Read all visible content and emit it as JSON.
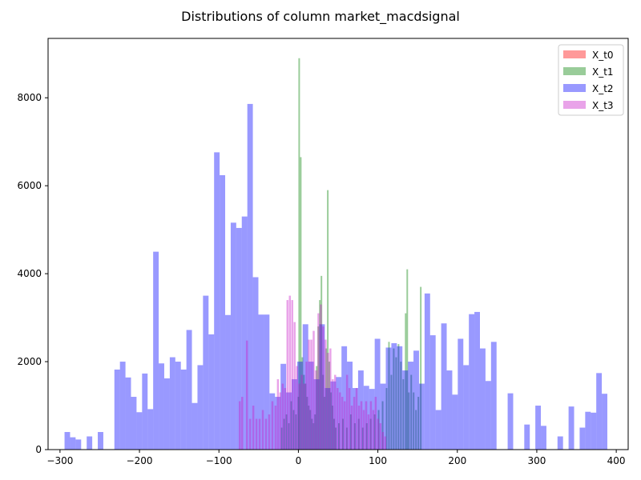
{
  "chart_data": {
    "type": "histogram",
    "title": "Distributions of column market_macdsignal",
    "xlabel": "",
    "ylabel": "",
    "xlim": [
      -315,
      415
    ],
    "ylim": [
      0,
      9350
    ],
    "xticks": [
      -300,
      -200,
      -100,
      0,
      100,
      200,
      300,
      400
    ],
    "xtick_labels": [
      "−300",
      "−200",
      "−100",
      "0",
      "100",
      "200",
      "300",
      "400"
    ],
    "yticks": [
      0,
      2000,
      4000,
      6000,
      8000
    ],
    "ytick_labels": [
      "0",
      "2000",
      "4000",
      "6000",
      "8000"
    ],
    "grid": false,
    "legend_position": "top-right",
    "series": [
      {
        "name": "X_t0",
        "color": "#ff0000",
        "alpha": 0.4,
        "bin_width": 1.0,
        "bins": []
      },
      {
        "name": "X_t1",
        "color": "#008000",
        "alpha": 0.4,
        "bin_width": 2.0,
        "bins": [
          [
            -22,
            500
          ],
          [
            -19,
            700
          ],
          [
            -16,
            800
          ],
          [
            -13,
            600
          ],
          [
            -10,
            1100
          ],
          [
            -7,
            900
          ],
          [
            -4,
            800
          ],
          [
            -1,
            1200
          ],
          [
            0,
            8900
          ],
          [
            2,
            6650
          ],
          [
            4,
            2100
          ],
          [
            6,
            1700
          ],
          [
            8,
            1500
          ],
          [
            10,
            1200
          ],
          [
            12,
            1000
          ],
          [
            14,
            900
          ],
          [
            16,
            700
          ],
          [
            18,
            600
          ],
          [
            20,
            800
          ],
          [
            22,
            1900
          ],
          [
            24,
            2800
          ],
          [
            26,
            3400
          ],
          [
            28,
            3950
          ],
          [
            30,
            1700
          ],
          [
            32,
            1200
          ],
          [
            34,
            2300
          ],
          [
            36,
            5900
          ],
          [
            38,
            2000
          ],
          [
            40,
            1300
          ],
          [
            42,
            1000
          ],
          [
            44,
            700
          ],
          [
            46,
            500
          ],
          [
            50,
            600
          ],
          [
            55,
            700
          ],
          [
            60,
            500
          ],
          [
            65,
            800
          ],
          [
            70,
            600
          ],
          [
            75,
            700
          ],
          [
            80,
            500
          ],
          [
            85,
            600
          ],
          [
            90,
            700
          ],
          [
            95,
            800
          ],
          [
            100,
            900
          ],
          [
            105,
            1100
          ],
          [
            110,
            1400
          ],
          [
            113,
            2450
          ],
          [
            116,
            1700
          ],
          [
            119,
            2300
          ],
          [
            122,
            2100
          ],
          [
            125,
            2400
          ],
          [
            128,
            2000
          ],
          [
            131,
            1600
          ],
          [
            134,
            3100
          ],
          [
            136,
            4100
          ],
          [
            138,
            1300
          ],
          [
            141,
            1700
          ],
          [
            144,
            1300
          ],
          [
            147,
            900
          ],
          [
            150,
            1200
          ],
          [
            153,
            3700
          ]
        ]
      },
      {
        "name": "X_t2",
        "color": "#0000ff",
        "alpha": 0.4,
        "bin_width": 6.97,
        "bins": [
          [
            -294.28,
            400
          ],
          [
            -287.31,
            280
          ],
          [
            -280.34,
            230
          ],
          [
            -266.4,
            300
          ],
          [
            -252.46,
            400
          ],
          [
            -231.55,
            1820
          ],
          [
            -224.58,
            2000
          ],
          [
            -217.61,
            1640
          ],
          [
            -210.64,
            1200
          ],
          [
            -203.67,
            850
          ],
          [
            -196.7,
            1730
          ],
          [
            -189.73,
            920
          ],
          [
            -182.76,
            4500
          ],
          [
            -175.79,
            1960
          ],
          [
            -168.82,
            1620
          ],
          [
            -161.85,
            2100
          ],
          [
            -154.88,
            2000
          ],
          [
            -147.91,
            1820
          ],
          [
            -140.94,
            2720
          ],
          [
            -133.97,
            1060
          ],
          [
            -127.0,
            1920
          ],
          [
            -120.03,
            3500
          ],
          [
            -113.06,
            2620
          ],
          [
            -106.09,
            6760
          ],
          [
            -99.12,
            6240
          ],
          [
            -92.15,
            3060
          ],
          [
            -85.18,
            5160
          ],
          [
            -78.21,
            5040
          ],
          [
            -71.24,
            5300
          ],
          [
            -64.27,
            7860
          ],
          [
            -57.3,
            3920
          ],
          [
            -50.33,
            3070
          ],
          [
            -43.36,
            3070
          ],
          [
            -36.39,
            1280
          ],
          [
            -29.42,
            1200
          ],
          [
            -22.45,
            1950
          ],
          [
            -15.48,
            1300
          ],
          [
            -8.51,
            1600
          ],
          [
            -1.54,
            2000
          ],
          [
            5.43,
            2850
          ],
          [
            12.4,
            2000
          ],
          [
            19.37,
            1600
          ],
          [
            26.34,
            2850
          ],
          [
            33.31,
            1400
          ],
          [
            40.28,
            1550
          ],
          [
            47.25,
            1650
          ],
          [
            54.22,
            2350
          ],
          [
            61.19,
            2000
          ],
          [
            68.16,
            1400
          ],
          [
            75.13,
            1800
          ],
          [
            82.1,
            1450
          ],
          [
            89.07,
            1380
          ],
          [
            96.04,
            2520
          ],
          [
            103.01,
            1500
          ],
          [
            109.98,
            2320
          ],
          [
            116.95,
            2420
          ],
          [
            123.92,
            2350
          ],
          [
            130.89,
            1800
          ],
          [
            137.86,
            2000
          ],
          [
            144.83,
            2250
          ],
          [
            151.8,
            1500
          ],
          [
            158.77,
            3550
          ],
          [
            165.74,
            2600
          ],
          [
            172.71,
            900
          ],
          [
            179.68,
            2870
          ],
          [
            186.65,
            1800
          ],
          [
            193.62,
            1250
          ],
          [
            200.59,
            2520
          ],
          [
            207.56,
            1920
          ],
          [
            214.53,
            3080
          ],
          [
            221.5,
            3130
          ],
          [
            228.47,
            2300
          ],
          [
            235.44,
            1560
          ],
          [
            242.41,
            2450
          ],
          [
            263.32,
            1280
          ],
          [
            284.23,
            570
          ],
          [
            298.17,
            1000
          ],
          [
            305.14,
            540
          ],
          [
            326.05,
            300
          ],
          [
            339.99,
            980
          ],
          [
            353.93,
            500
          ],
          [
            360.9,
            860
          ],
          [
            367.87,
            840
          ],
          [
            374.84,
            1740
          ],
          [
            381.81,
            1270
          ]
        ]
      },
      {
        "name": "X_t3",
        "color": "#c71ac7",
        "alpha": 0.4,
        "bin_width": 2.5,
        "bins": [
          [
            -75,
            1100
          ],
          [
            -72,
            1200
          ],
          [
            -66,
            2480
          ],
          [
            -62,
            700
          ],
          [
            -58,
            1000
          ],
          [
            -54,
            700
          ],
          [
            -50,
            700
          ],
          [
            -46,
            900
          ],
          [
            -42,
            700
          ],
          [
            -38,
            800
          ],
          [
            -34,
            1100
          ],
          [
            -30,
            1000
          ],
          [
            -27,
            1600
          ],
          [
            -24,
            1300
          ],
          [
            -21,
            1500
          ],
          [
            -18,
            1400
          ],
          [
            -15,
            3400
          ],
          [
            -12,
            3500
          ],
          [
            -9,
            3400
          ],
          [
            -6,
            2900
          ],
          [
            -3,
            1900
          ],
          [
            0,
            1500
          ],
          [
            3,
            1700
          ],
          [
            6,
            1500
          ],
          [
            9,
            2000
          ],
          [
            12,
            2500
          ],
          [
            15,
            2500
          ],
          [
            18,
            2700
          ],
          [
            21,
            1800
          ],
          [
            24,
            3100
          ],
          [
            27,
            3300
          ],
          [
            30,
            2800
          ],
          [
            33,
            2500
          ],
          [
            36,
            2200
          ],
          [
            39,
            2300
          ],
          [
            42,
            1600
          ],
          [
            45,
            1700
          ],
          [
            48,
            1400
          ],
          [
            51,
            1300
          ],
          [
            54,
            1200
          ],
          [
            57,
            1100
          ],
          [
            60,
            1700
          ],
          [
            63,
            1400
          ],
          [
            66,
            1000
          ],
          [
            69,
            1200
          ],
          [
            72,
            1400
          ],
          [
            75,
            1000
          ],
          [
            78,
            1100
          ],
          [
            81,
            900
          ],
          [
            84,
            1100
          ],
          [
            87,
            800
          ],
          [
            90,
            1100
          ],
          [
            93,
            900
          ],
          [
            96,
            1200
          ],
          [
            99,
            700
          ],
          [
            102,
            600
          ],
          [
            105,
            400
          ],
          [
            108,
            300
          ]
        ]
      }
    ]
  }
}
